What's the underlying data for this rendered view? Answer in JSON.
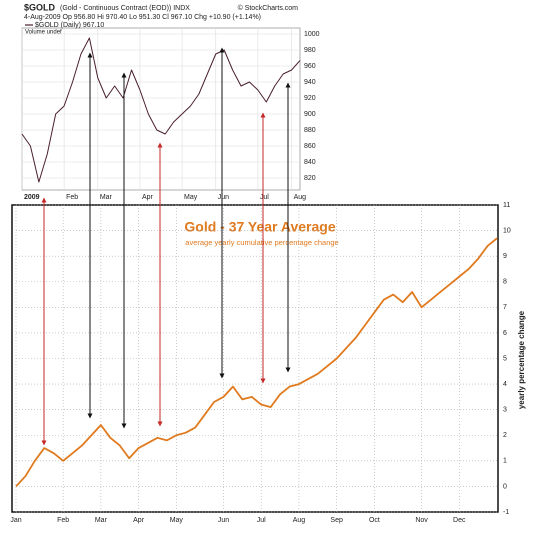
{
  "chart_data": [
    {
      "type": "line",
      "title": "$GOLD",
      "subtitle": "(Gold - Continuous Contract (EOD)) INDX",
      "source": "© StockCharts.com",
      "info": "4-Aug-2009  Op 956.80  Hi 970.40  Lo 951.30  Cl 967.10  Chg +10.90 (+1.14%)",
      "note": "Volume undef",
      "categories": [
        "2009",
        null,
        null,
        null,
        null,
        "Feb",
        null,
        null,
        null,
        "Mar",
        null,
        null,
        null,
        null,
        "Apr",
        null,
        null,
        null,
        null,
        "May",
        null,
        null,
        null,
        "Jun",
        null,
        null,
        null,
        null,
        "Jul",
        null,
        null,
        null,
        "Aug",
        null
      ],
      "series": [
        {
          "name": "$GOLD (Daily) 967.10",
          "color": "#4a1f2e",
          "values": [
            875,
            860,
            815,
            850,
            900,
            910,
            940,
            975,
            995,
            945,
            920,
            935,
            920,
            955,
            930,
            900,
            880,
            875,
            890,
            900,
            910,
            925,
            950,
            975,
            980,
            955,
            935,
            940,
            930,
            915,
            935,
            950,
            955,
            967
          ]
        }
      ],
      "ylim": [
        805,
        1007.5
      ],
      "yticks": [
        820,
        840,
        860,
        880,
        900,
        920,
        940,
        960,
        980,
        1000
      ],
      "grid": true
    },
    {
      "type": "line",
      "title": "Gold - 37 Year Average",
      "subtitle": "average yearly cumulative percentage change",
      "ylabel": "yearly percentage change",
      "categories": [
        "Jan",
        null,
        null,
        null,
        null,
        "Feb",
        null,
        null,
        null,
        "Mar",
        null,
        null,
        null,
        "Apr",
        null,
        null,
        null,
        "May",
        null,
        null,
        null,
        null,
        "Jun",
        null,
        null,
        null,
        "Jul",
        null,
        null,
        null,
        "Aug",
        null,
        null,
        null,
        "Sep",
        null,
        null,
        null,
        "Oct",
        null,
        null,
        null,
        null,
        "Nov",
        null,
        null,
        null,
        "Dec",
        null,
        null,
        null,
        null
      ],
      "color": "#e07a1f",
      "values": [
        0,
        0.4,
        1.0,
        1.5,
        1.3,
        1.0,
        1.3,
        1.6,
        2.0,
        2.4,
        1.9,
        1.6,
        1.1,
        1.5,
        1.7,
        1.9,
        1.8,
        2.0,
        2.1,
        2.3,
        2.8,
        3.3,
        3.5,
        3.9,
        3.4,
        3.5,
        3.2,
        3.1,
        3.6,
        3.9,
        4.0,
        4.2,
        4.4,
        4.7,
        5.0,
        5.4,
        5.8,
        6.3,
        6.8,
        7.3,
        7.5,
        7.2,
        7.6,
        7.0,
        7.3,
        7.6,
        7.9,
        8.2,
        8.5,
        8.9,
        9.4,
        9.7
      ],
      "ylim": [
        -1,
        11
      ],
      "yticks": [
        -1,
        0,
        1,
        2,
        3,
        4,
        5,
        6,
        7,
        8,
        9,
        10,
        11
      ],
      "grid": true
    }
  ]
}
